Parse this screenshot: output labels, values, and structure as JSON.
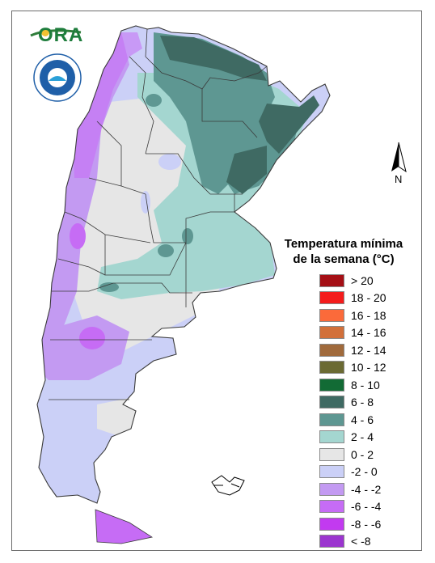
{
  "logos": {
    "ora_text": "ORA"
  },
  "compass": {
    "north_label": "N",
    "icon": "north-arrow-icon"
  },
  "legend": {
    "title_line1": "Temperatura mínima",
    "title_line2": "de la semana (°C)",
    "items": [
      {
        "label": "> 20",
        "color": "#a50f15"
      },
      {
        "label": "18 - 20",
        "color": "#f41c1c"
      },
      {
        "label": "16 - 18",
        "color": "#fb6a3a"
      },
      {
        "label": "14 - 16",
        "color": "#d2703a"
      },
      {
        "label": "12 - 14",
        "color": "#a06a3c"
      },
      {
        "label": "10 - 12",
        "color": "#6b6a33"
      },
      {
        "label": "8 - 10",
        "color": "#126b35"
      },
      {
        "label": "6 - 8",
        "color": "#3f6a63"
      },
      {
        "label": "4 - 6",
        "color": "#5e9792"
      },
      {
        "label": "2 - 4",
        "color": "#a4d6d0"
      },
      {
        "label": "0 - 2",
        "color": "#e6e6e6"
      },
      {
        "label": "-2 - 0",
        "color": "#cbd0f7"
      },
      {
        "label": "-4 - -2",
        "color": "#c39af2"
      },
      {
        "label": "-6 - -4",
        "color": "#c66cf5"
      },
      {
        "label": "-8 - -6",
        "color": "#c23af0"
      },
      {
        "label": "< -8",
        "color": "#9b35cf"
      }
    ]
  }
}
